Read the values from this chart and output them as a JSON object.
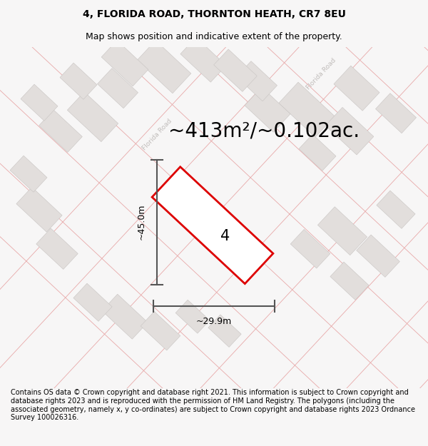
{
  "title": "4, FLORIDA ROAD, THORNTON HEATH, CR7 8EU",
  "subtitle": "Map shows position and indicative extent of the property.",
  "area_text": "~413m²/~0.102ac.",
  "number_label": "4",
  "width_label": "~29.9m",
  "height_label": "~45.0m",
  "footer": "Contains OS data © Crown copyright and database right 2021. This information is subject to Crown copyright and database rights 2023 and is reproduced with the permission of HM Land Registry. The polygons (including the associated geometry, namely x, y co-ordinates) are subject to Crown copyright and database rights 2023 Ordnance Survey 100026316.",
  "bg_color": "#f7f6f6",
  "map_bg": "#f0edec",
  "building_fill": "#e2dedc",
  "building_edge": "#c8c4c2",
  "road_line_color": "#e8a8a8",
  "road_label_color": "#c0bcba",
  "plot_fill": "#ffffff",
  "plot_edge": "#dd0000",
  "title_fontsize": 10,
  "subtitle_fontsize": 9,
  "area_fontsize": 20,
  "number_fontsize": 15,
  "dim_fontsize": 9,
  "footer_fontsize": 7,
  "road_lw": 0.6,
  "building_lw": 0.4
}
